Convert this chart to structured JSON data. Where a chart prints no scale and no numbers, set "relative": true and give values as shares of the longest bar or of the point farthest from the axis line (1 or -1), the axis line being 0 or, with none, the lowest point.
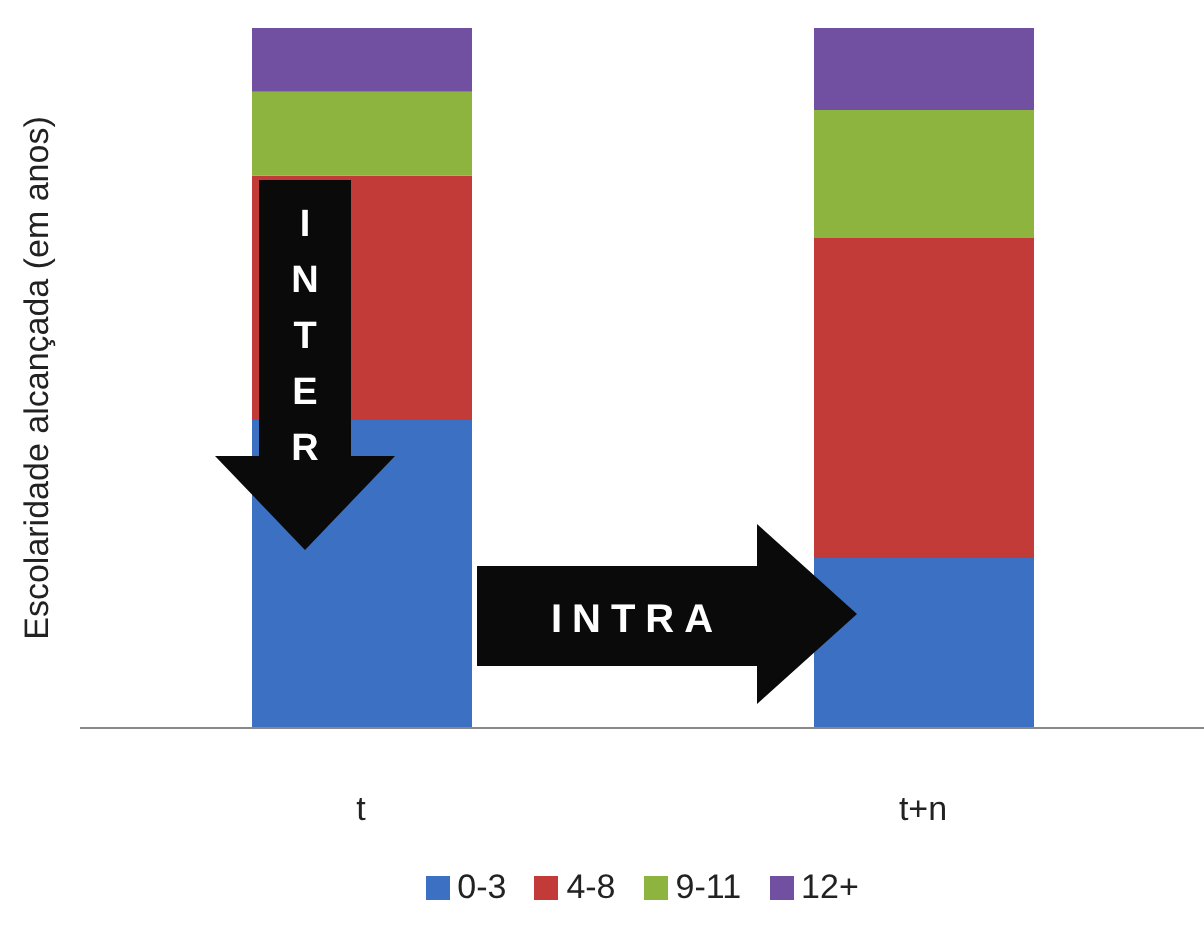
{
  "chart_data": {
    "type": "bar",
    "stacked": true,
    "relative": true,
    "ylabel": "Escolaridade alcançada (em anos)",
    "categories": [
      "t",
      "t+n"
    ],
    "series": [
      {
        "name": "0-3",
        "color": "#3b70c2",
        "values": [
          0.44,
          0.243
        ]
      },
      {
        "name": "4-8",
        "color": "#c33b38",
        "values": [
          0.349,
          0.457
        ]
      },
      {
        "name": "9-11",
        "color": "#8cb43f",
        "values": [
          0.12,
          0.183
        ]
      },
      {
        "name": "12+",
        "color": "#7150a2",
        "values": [
          0.091,
          0.117
        ]
      }
    ],
    "legend": "bottom",
    "annotations": [
      "INTER",
      "INTRA"
    ]
  }
}
